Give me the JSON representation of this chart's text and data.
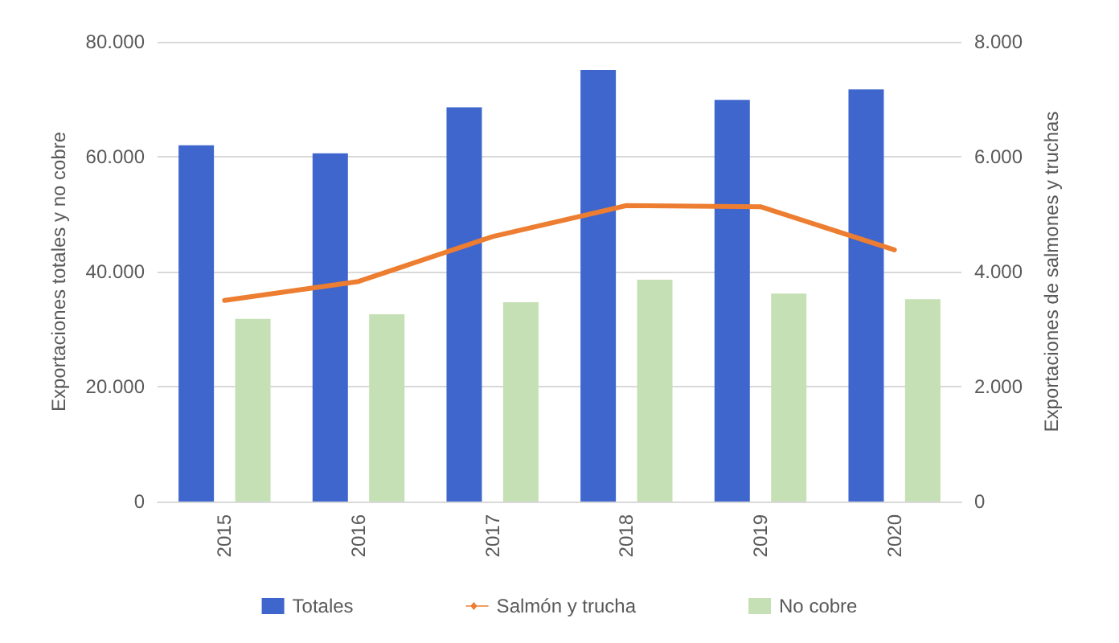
{
  "chart_data": {
    "type": "bar",
    "categories": [
      "2015",
      "2016",
      "2017",
      "2018",
      "2019",
      "2020"
    ],
    "ylabel": "Exportaciones totales y no cobre",
    "y2label": "Exportaciones de salmones y truchas",
    "series": [
      {
        "name": "Totales",
        "color": "#3f66cc",
        "values": [
          62000,
          60600,
          68600,
          75100,
          69900,
          71700
        ]
      },
      {
        "name": "Salmón y trucha",
        "type": "line",
        "axis": "y2",
        "color": "#ed7d31",
        "values": [
          3500,
          3830,
          4610,
          5150,
          5130,
          4380
        ]
      },
      {
        "name": "No cobre",
        "color": "#c5e0b4",
        "values": [
          31800,
          32600,
          34700,
          38600,
          36200,
          35200
        ]
      }
    ],
    "ylim": [
      0,
      80000
    ],
    "yticks": [
      {
        "value": 0,
        "label": "0"
      },
      {
        "value": 20000,
        "label": "20.000"
      },
      {
        "value": 40000,
        "label": "40.000"
      },
      {
        "value": 60000,
        "label": "60.000"
      },
      {
        "value": 80000,
        "label": "80.000"
      }
    ],
    "y2lim": [
      0,
      8000
    ],
    "y2ticks": [
      {
        "value": 0,
        "label": "0"
      },
      {
        "value": 2000,
        "label": "2.000"
      },
      {
        "value": 4000,
        "label": "4.000"
      },
      {
        "value": 6000,
        "label": "6.000"
      },
      {
        "value": 8000,
        "label": "8.000"
      }
    ],
    "grid": "y",
    "legend": "bottom",
    "marker": "none",
    "line_style": "solid"
  }
}
